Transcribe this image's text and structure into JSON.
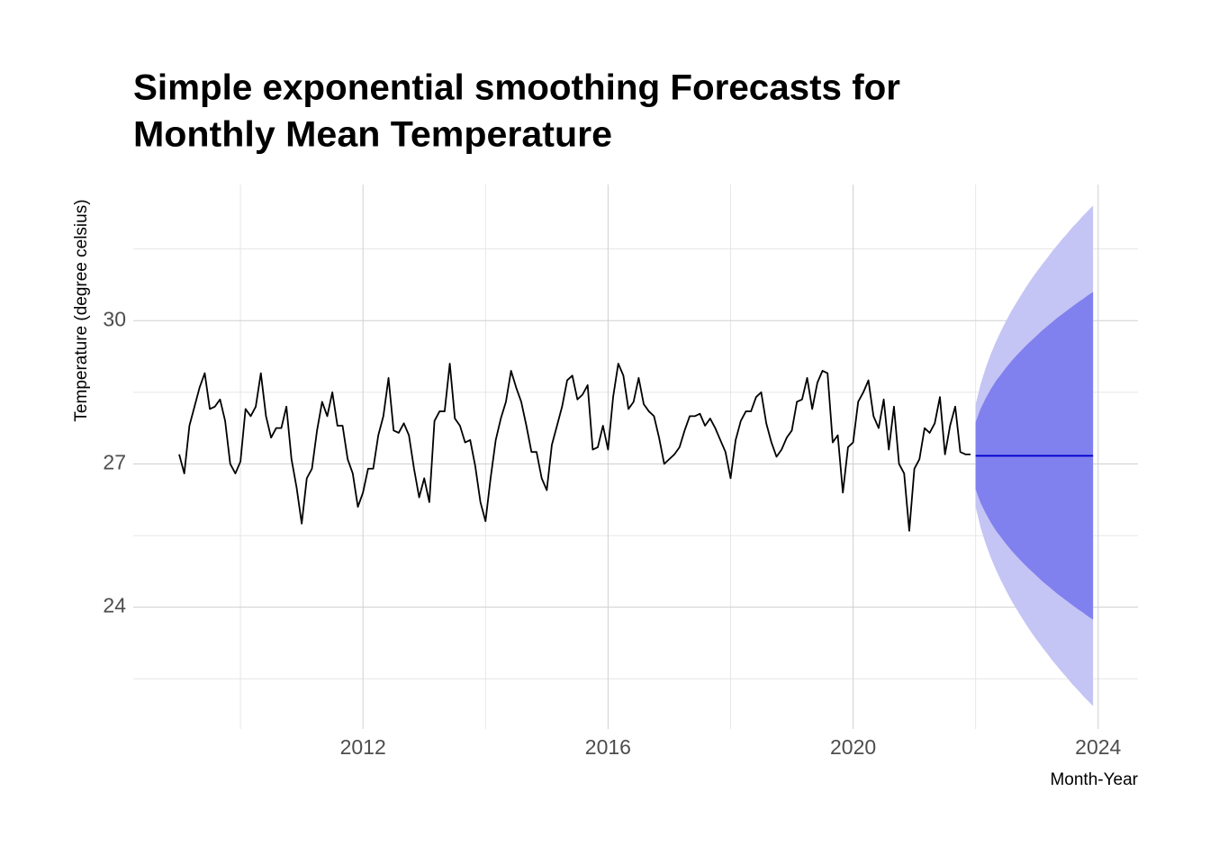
{
  "chart_data": {
    "type": "line",
    "title": [
      "Simple exponential smoothing Forecasts for",
      "Monthly Mean Temperature"
    ],
    "x_label": "Month-Year",
    "y_label": "Temperature (degree celsius)",
    "xlim": [
      2008.25,
      2024.65
    ],
    "ylim": [
      21.45,
      32.85
    ],
    "xticks": [
      2012,
      2016,
      2020,
      2024
    ],
    "xminor_ticks": [
      2010,
      2014,
      2018,
      2022
    ],
    "yticks": [
      24,
      27,
      30
    ],
    "yminor_ticks": [
      22.5,
      25.5,
      28.5,
      31.5
    ],
    "grid": true,
    "x": [
      2009.0,
      2009.083,
      2009.167,
      2009.25,
      2009.333,
      2009.417,
      2009.5,
      2009.583,
      2009.667,
      2009.75,
      2009.833,
      2009.917,
      2010.0,
      2010.083,
      2010.167,
      2010.25,
      2010.333,
      2010.417,
      2010.5,
      2010.583,
      2010.667,
      2010.75,
      2010.833,
      2010.917,
      2011.0,
      2011.083,
      2011.167,
      2011.25,
      2011.333,
      2011.417,
      2011.5,
      2011.583,
      2011.667,
      2011.75,
      2011.833,
      2011.917,
      2012.0,
      2012.083,
      2012.167,
      2012.25,
      2012.333,
      2012.417,
      2012.5,
      2012.583,
      2012.667,
      2012.75,
      2012.833,
      2012.917,
      2013.0,
      2013.083,
      2013.167,
      2013.25,
      2013.333,
      2013.417,
      2013.5,
      2013.583,
      2013.667,
      2013.75,
      2013.833,
      2013.917,
      2014.0,
      2014.083,
      2014.167,
      2014.25,
      2014.333,
      2014.417,
      2014.5,
      2014.583,
      2014.667,
      2014.75,
      2014.833,
      2014.917,
      2015.0,
      2015.083,
      2015.167,
      2015.25,
      2015.333,
      2015.417,
      2015.5,
      2015.583,
      2015.667,
      2015.75,
      2015.833,
      2015.917,
      2016.0,
      2016.083,
      2016.167,
      2016.25,
      2016.333,
      2016.417,
      2016.5,
      2016.583,
      2016.667,
      2016.75,
      2016.833,
      2016.917,
      2017.0,
      2017.083,
      2017.167,
      2017.25,
      2017.333,
      2017.417,
      2017.5,
      2017.583,
      2017.667,
      2017.75,
      2017.833,
      2017.917,
      2018.0,
      2018.083,
      2018.167,
      2018.25,
      2018.333,
      2018.417,
      2018.5,
      2018.583,
      2018.667,
      2018.75,
      2018.833,
      2018.917,
      2019.0,
      2019.083,
      2019.167,
      2019.25,
      2019.333,
      2019.417,
      2019.5,
      2019.583,
      2019.667,
      2019.75,
      2019.833,
      2019.917,
      2020.0,
      2020.083,
      2020.167,
      2020.25,
      2020.333,
      2020.417,
      2020.5,
      2020.583,
      2020.667,
      2020.75,
      2020.833,
      2020.917,
      2021.0,
      2021.083,
      2021.167,
      2021.25,
      2021.333,
      2021.417,
      2021.5,
      2021.583,
      2021.667,
      2021.75,
      2021.833,
      2021.917
    ],
    "series": [
      {
        "color": "#000000",
        "values": [
          27.2,
          26.8,
          27.8,
          28.2,
          28.6,
          28.9,
          28.15,
          28.2,
          28.35,
          27.9,
          27.0,
          26.8,
          27.05,
          28.15,
          28.0,
          28.2,
          28.9,
          28.0,
          27.55,
          27.75,
          27.75,
          28.2,
          27.1,
          26.5,
          25.75,
          26.7,
          26.9,
          27.7,
          28.3,
          28.0,
          28.5,
          27.8,
          27.8,
          27.1,
          26.8,
          26.1,
          26.4,
          26.9,
          26.9,
          27.6,
          28.0,
          28.8,
          27.7,
          27.65,
          27.85,
          27.6,
          26.9,
          26.3,
          26.7,
          26.2,
          27.9,
          28.1,
          28.1,
          29.1,
          27.95,
          27.8,
          27.45,
          27.5,
          26.95,
          26.2,
          25.8,
          26.7,
          27.5,
          27.95,
          28.3,
          28.95,
          28.6,
          28.3,
          27.8,
          27.25,
          27.25,
          26.7,
          26.45,
          27.4,
          27.8,
          28.2,
          28.75,
          28.85,
          28.35,
          28.45,
          28.65,
          27.3,
          27.35,
          27.8,
          27.3,
          28.4,
          29.1,
          28.85,
          28.15,
          28.3,
          28.8,
          28.25,
          28.1,
          28.0,
          27.55,
          27.0,
          27.1,
          27.2,
          27.35,
          27.7,
          28.0,
          28.0,
          28.05,
          27.8,
          27.95,
          27.75,
          27.5,
          27.25,
          26.7,
          27.5,
          27.9,
          28.1,
          28.1,
          28.4,
          28.5,
          27.85,
          27.45,
          27.15,
          27.3,
          27.55,
          27.7,
          28.3,
          28.35,
          28.8,
          28.15,
          28.7,
          28.95,
          28.9,
          27.45,
          27.6,
          26.4,
          27.35,
          27.45,
          28.3,
          28.5,
          28.75,
          28.0,
          27.75,
          28.35,
          27.3,
          28.2,
          27.0,
          26.8,
          25.6,
          26.9,
          27.1,
          27.75,
          27.65,
          27.85,
          28.4,
          27.2,
          27.8,
          28.2,
          27.25,
          27.2,
          27.2
        ]
      }
    ],
    "forecast": {
      "x": [
        2022.0,
        2022.083,
        2022.167,
        2022.25,
        2022.333,
        2022.417,
        2022.5,
        2022.583,
        2022.667,
        2022.75,
        2022.833,
        2022.917,
        2023.0,
        2023.083,
        2023.167,
        2023.25,
        2023.333,
        2023.417,
        2023.5,
        2023.583,
        2023.667,
        2023.75,
        2023.833,
        2023.917
      ],
      "mean": [
        27.17,
        27.17,
        27.17,
        27.17,
        27.17,
        27.17,
        27.17,
        27.17,
        27.17,
        27.17,
        27.17,
        27.17,
        27.17,
        27.17,
        27.17,
        27.17,
        27.17,
        27.17,
        27.17,
        27.17,
        27.17,
        27.17,
        27.17,
        27.17
      ],
      "hi80": [
        27.87,
        28.16,
        28.38,
        28.57,
        28.74,
        28.88,
        29.02,
        29.15,
        29.27,
        29.38,
        29.49,
        29.59,
        29.69,
        29.79,
        29.88,
        29.97,
        30.06,
        30.14,
        30.22,
        30.3,
        30.38,
        30.45,
        30.53,
        30.6
      ],
      "lo80": [
        26.47,
        26.18,
        25.96,
        25.77,
        25.6,
        25.46,
        25.32,
        25.19,
        25.07,
        24.96,
        24.85,
        24.75,
        24.65,
        24.55,
        24.46,
        24.37,
        24.28,
        24.2,
        24.12,
        24.04,
        23.96,
        23.89,
        23.81,
        23.74
      ],
      "hi95": [
        28.24,
        28.68,
        29.02,
        29.31,
        29.56,
        29.79,
        30.0,
        30.2,
        30.38,
        30.55,
        30.72,
        30.88,
        31.03,
        31.17,
        31.31,
        31.45,
        31.58,
        31.71,
        31.83,
        31.96,
        32.07,
        32.19,
        32.3,
        32.41
      ],
      "lo95": [
        26.1,
        25.66,
        25.32,
        25.03,
        24.78,
        24.55,
        24.34,
        24.14,
        23.96,
        23.79,
        23.62,
        23.46,
        23.31,
        23.17,
        23.03,
        22.89,
        22.76,
        22.63,
        22.51,
        22.38,
        22.27,
        22.15,
        22.04,
        21.93
      ],
      "mean_color": "#0000cc",
      "color80": "#8080ee",
      "color95": "#c4c4f5"
    }
  }
}
